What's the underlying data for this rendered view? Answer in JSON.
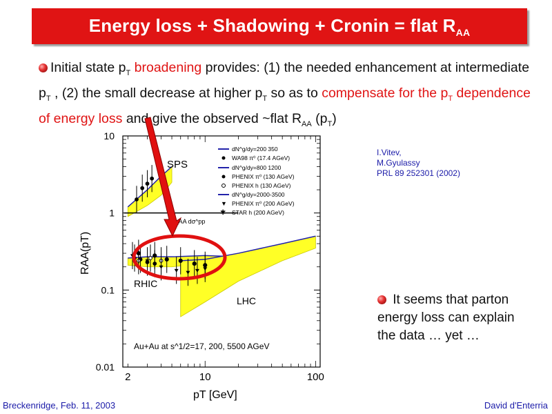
{
  "slide": {
    "title_main": "Energy loss + Shadowing + Cronin = flat R",
    "title_sub": "AA",
    "text": {
      "p1": "Initial state p",
      "p1_sub": "T",
      "red1": " broadening",
      "p2": " provides: (1) the needed enhancement at intermediate p",
      "p2_sub": "T",
      "p3": " ,  (2) the small decrease at higher p",
      "p3_sub": "T",
      "p4": " so as to ",
      "red2": "compensate for the p",
      "red2_sub": "T",
      "red3": " dependence of energy loss",
      "p5": " and give the observed ~flat R",
      "p5_sub": "AA",
      "p6": " (p",
      "p6_sub": "T",
      "p7": ")"
    },
    "refs": [
      "I.Vitev,",
      "M.Gyulassy",
      "PRL 89 252301 (2002)"
    ],
    "note": {
      "line1": "It seems that parton",
      "line2": "energy loss can explain",
      "line3": "the data …     yet …"
    },
    "footer_left": "Breckenridge, Feb. 11, 2003",
    "footer_right": "David d'Enterria"
  },
  "chart_data": {
    "type": "scatter",
    "xlabel": "pT [GeV]",
    "ylabel": "RAA(pT)",
    "x_scale": "log",
    "y_scale": "log",
    "xlim": [
      1.8,
      110
    ],
    "ylim": [
      0.01,
      10
    ],
    "x_ticks": [
      2,
      10,
      100
    ],
    "y_ticks": [
      0.01,
      0.1,
      1,
      10
    ],
    "x_tick_labels": [
      "2",
      "10",
      "100"
    ],
    "y_tick_labels": [
      "0.01",
      "0.1",
      "1",
      "10"
    ],
    "legend": [
      "dN^g/dy=200  350",
      "WA98 π⁰ (17.4 AGeV)",
      "dN^g/dy=800  1200",
      "PHENIX π⁰ (130 AGeV)",
      "PHENIX h (130 AGeV)",
      "dN^g/dy=2000-3500",
      "PHENIX π⁰ (200 AGeV)",
      "STAR h (200 AGeV)"
    ],
    "annotations": [
      "SPS",
      "RHIC",
      "LHC",
      "Au+Au at s^1/2=17, 200, 5500 AGeV",
      "σ_AA dσ^pp"
    ],
    "bands": [
      {
        "name": "SPS",
        "x": [
          2,
          3,
          4,
          5
        ],
        "low": [
          0.9,
          1.25,
          1.7,
          2.5
        ],
        "high": [
          1.2,
          2.0,
          3.0,
          4.0
        ]
      },
      {
        "name": "RHIC",
        "x": [
          2,
          3,
          5,
          10,
          20
        ],
        "low": [
          0.21,
          0.2,
          0.2,
          0.22,
          0.23
        ],
        "high": [
          0.26,
          0.27,
          0.27,
          0.28,
          0.27
        ]
      },
      {
        "name": "LHC",
        "x": [
          6,
          10,
          20,
          50,
          100
        ],
        "low": [
          0.045,
          0.07,
          0.13,
          0.24,
          0.35
        ],
        "high": [
          0.24,
          0.25,
          0.3,
          0.4,
          0.5
        ]
      }
    ],
    "series": [
      {
        "name": "WA98 π⁰ (17.4 AGeV)",
        "x": [
          2.4,
          2.7,
          3.0,
          3.3
        ],
        "y": [
          1.5,
          2.1,
          2.4,
          2.8
        ]
      },
      {
        "name": "PHENIX π⁰ (130 AGeV)",
        "x": [
          2.3,
          2.6,
          3.0,
          3.5
        ],
        "y": [
          0.26,
          0.25,
          0.23,
          0.22
        ]
      },
      {
        "name": "PHENIX h (130 AGeV)",
        "x": [
          2.5,
          3.2,
          4.0
        ],
        "y": [
          0.24,
          0.26,
          0.24
        ]
      },
      {
        "name": "PHENIX π⁰ (200 AGeV)",
        "x": [
          2.2,
          3.0,
          4.0,
          5.5,
          7.0,
          8.5,
          10.0
        ],
        "y": [
          0.28,
          0.24,
          0.2,
          0.18,
          0.17,
          0.18,
          0.19
        ]
      },
      {
        "name": "STAR h (200 AGeV)",
        "x": [
          2.5,
          3.5,
          4.5,
          6.0,
          8.0,
          10.0
        ],
        "y": [
          0.3,
          0.28,
          0.25,
          0.24,
          0.22,
          0.21
        ]
      }
    ]
  }
}
